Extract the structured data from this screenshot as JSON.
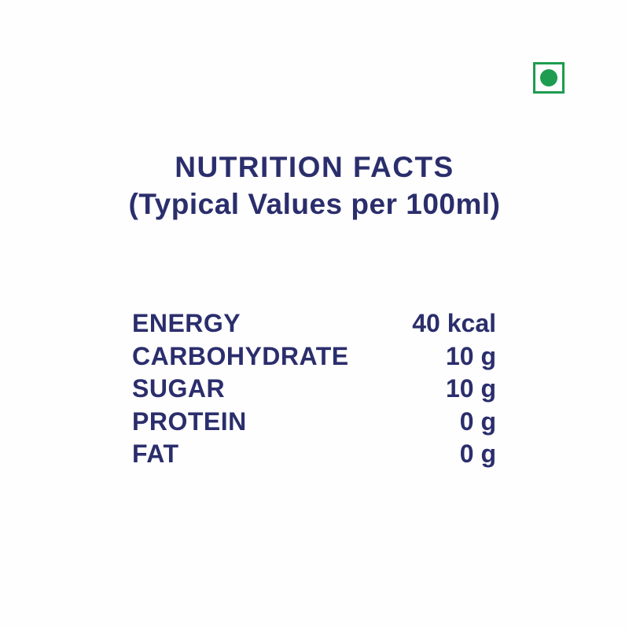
{
  "colors": {
    "text_navy": "#2b2e6c",
    "veg_green": "#1e9c50",
    "background": "#fefefe"
  },
  "icons": {
    "veg_mark": "veg-mark-icon (green dot inside green square, vegetarian symbol)"
  },
  "header": {
    "title": "NUTRITION FACTS",
    "subtitle": "(Typical Values per 100ml)"
  },
  "nutrition_table": {
    "rows": [
      {
        "label": "ENERGY",
        "value": "40 kcal"
      },
      {
        "label": "CARBOHYDRATE",
        "value": "10 g"
      },
      {
        "label": "SUGAR",
        "value": "10 g"
      },
      {
        "label": "PROTEIN",
        "value": "0 g"
      },
      {
        "label": "FAT",
        "value": "0 g"
      }
    ]
  }
}
